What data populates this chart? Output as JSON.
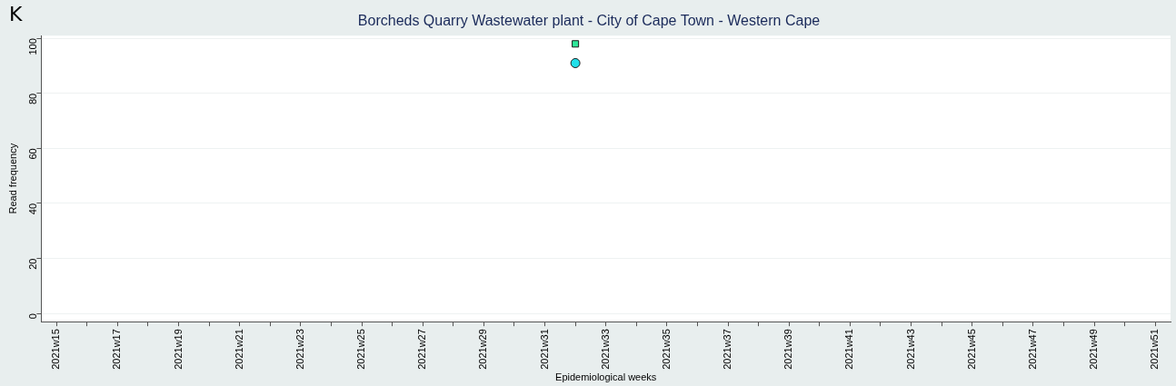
{
  "chart_data": {
    "type": "scatter",
    "title": "Borcheds Quarry Wastewater plant - City of Cape Town - Western Cape",
    "xlabel": "Epidemiological weeks",
    "ylabel": "Read frequency",
    "annotations": [
      "K"
    ],
    "categories": [
      "2021w15",
      null,
      "2021w17",
      null,
      "2021w19",
      null,
      "2021w21",
      null,
      "2021w23",
      null,
      "2021w25",
      null,
      "2021w27",
      null,
      "2021w29",
      null,
      "2021w31",
      null,
      "2021w33",
      null,
      "2021w35",
      null,
      "2021w37",
      null,
      "2021w39",
      null,
      "2021w41",
      null,
      "2021w43",
      null,
      "2021w45",
      null,
      "2021w47",
      null,
      "2021w49",
      null,
      "2021w51"
    ],
    "series": [
      {
        "color": "#2ee89a",
        "marker": "square",
        "values": [
          null,
          null,
          null,
          null,
          null,
          null,
          null,
          null,
          null,
          null,
          null,
          null,
          null,
          null,
          null,
          null,
          null,
          98,
          null,
          null,
          null,
          null,
          null,
          null,
          null,
          null,
          null,
          null,
          null,
          null,
          null,
          null,
          null,
          null,
          null,
          null,
          null
        ]
      },
      {
        "color": "#22e0ea",
        "marker": "circle",
        "values": [
          null,
          null,
          null,
          null,
          null,
          null,
          null,
          null,
          null,
          null,
          null,
          null,
          null,
          null,
          null,
          null,
          null,
          91,
          null,
          null,
          null,
          null,
          null,
          null,
          null,
          null,
          null,
          null,
          null,
          null,
          null,
          null,
          null,
          null,
          null,
          null,
          null
        ]
      }
    ],
    "ylim": [
      -3,
      101
    ],
    "yticks": [
      0,
      20,
      40,
      60,
      80,
      100
    ],
    "grid": "y"
  }
}
